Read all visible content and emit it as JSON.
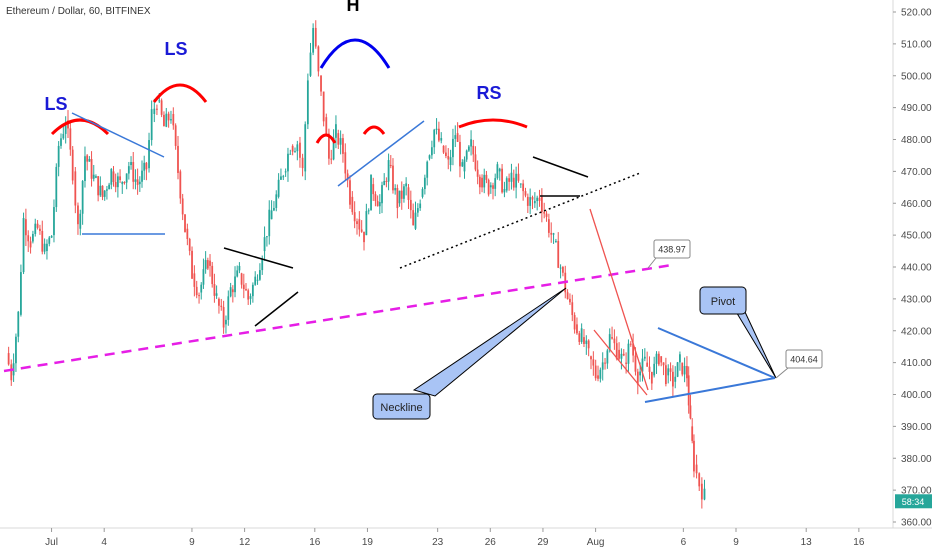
{
  "header": {
    "symbol_text": "Ethereum / Dollar, 60, BITFINEX"
  },
  "chart_data": {
    "type": "candlestick",
    "title": "Ethereum / Dollar, 60, BITFINEX",
    "ylim": [
      357,
      523
    ],
    "y_ticks": [
      520,
      510,
      500,
      490,
      480,
      470,
      460,
      450,
      440,
      430,
      420,
      410,
      400,
      390,
      380,
      370,
      360
    ],
    "y_tick_labels": [
      "520.00",
      "510.00",
      "500.00",
      "490.00",
      "480.00",
      "470.00",
      "460.00",
      "450.00",
      "440.00",
      "430.00",
      "420.00",
      "410.00",
      "400.00",
      "390.00",
      "380.00",
      "370.00",
      "360.00"
    ],
    "x_ticks": [
      {
        "label": "Jul",
        "day": 1
      },
      {
        "label": "4",
        "day": 4
      },
      {
        "label": "9",
        "day": 9
      },
      {
        "label": "12",
        "day": 12
      },
      {
        "label": "16",
        "day": 16
      },
      {
        "label": "19",
        "day": 19
      },
      {
        "label": "23",
        "day": 23
      },
      {
        "label": "26",
        "day": 26
      },
      {
        "label": "29",
        "day": 29
      },
      {
        "label": "Aug",
        "day": 32
      },
      {
        "label": "6",
        "day": 37
      },
      {
        "label": "9",
        "day": 40
      },
      {
        "label": "13",
        "day": 44
      },
      {
        "label": "16",
        "day": 47
      }
    ],
    "price_path": [
      {
        "day": 0.0,
        "price": 413
      },
      {
        "day": 0.3,
        "price": 406
      },
      {
        "day": 0.7,
        "price": 425
      },
      {
        "day": 1.0,
        "price": 455
      },
      {
        "day": 1.4,
        "price": 448
      },
      {
        "day": 1.8,
        "price": 452
      },
      {
        "day": 2.2,
        "price": 445
      },
      {
        "day": 2.6,
        "price": 450
      },
      {
        "day": 3.0,
        "price": 478
      },
      {
        "day": 3.4,
        "price": 486
      },
      {
        "day": 3.8,
        "price": 470
      },
      {
        "day": 4.1,
        "price": 452
      },
      {
        "day": 4.5,
        "price": 475
      },
      {
        "day": 5.0,
        "price": 468
      },
      {
        "day": 5.5,
        "price": 462
      },
      {
        "day": 6.0,
        "price": 470
      },
      {
        "day": 6.5,
        "price": 466
      },
      {
        "day": 7.0,
        "price": 472
      },
      {
        "day": 7.5,
        "price": 466
      },
      {
        "day": 8.0,
        "price": 471
      },
      {
        "day": 8.3,
        "price": 488
      },
      {
        "day": 8.6,
        "price": 492
      },
      {
        "day": 9.0,
        "price": 484
      },
      {
        "day": 9.4,
        "price": 488
      },
      {
        "day": 9.8,
        "price": 470
      },
      {
        "day": 10.2,
        "price": 452
      },
      {
        "day": 10.6,
        "price": 438
      },
      {
        "day": 11.0,
        "price": 432
      },
      {
        "day": 11.5,
        "price": 442
      },
      {
        "day": 12.0,
        "price": 430
      },
      {
        "day": 12.4,
        "price": 422
      },
      {
        "day": 12.8,
        "price": 433
      },
      {
        "day": 13.3,
        "price": 438
      },
      {
        "day": 13.8,
        "price": 430
      },
      {
        "day": 14.2,
        "price": 436
      },
      {
        "day": 14.6,
        "price": 445
      },
      {
        "day": 15.0,
        "price": 455
      },
      {
        "day": 15.4,
        "price": 462
      },
      {
        "day": 15.8,
        "price": 470
      },
      {
        "day": 16.2,
        "price": 478
      },
      {
        "day": 16.6,
        "price": 479
      },
      {
        "day": 16.9,
        "price": 470
      },
      {
        "day": 17.2,
        "price": 500
      },
      {
        "day": 17.5,
        "price": 515
      },
      {
        "day": 17.8,
        "price": 500
      },
      {
        "day": 18.1,
        "price": 487
      },
      {
        "day": 18.4,
        "price": 474
      },
      {
        "day": 18.8,
        "price": 482
      },
      {
        "day": 19.2,
        "price": 476
      },
      {
        "day": 19.6,
        "price": 462
      },
      {
        "day": 20.0,
        "price": 455
      },
      {
        "day": 20.4,
        "price": 450
      },
      {
        "day": 20.8,
        "price": 466
      },
      {
        "day": 21.3,
        "price": 460
      },
      {
        "day": 21.8,
        "price": 472
      },
      {
        "day": 22.3,
        "price": 460
      },
      {
        "day": 22.8,
        "price": 465
      },
      {
        "day": 23.2,
        "price": 452
      },
      {
        "day": 23.6,
        "price": 462
      },
      {
        "day": 24.0,
        "price": 474
      },
      {
        "day": 24.4,
        "price": 483
      },
      {
        "day": 24.8,
        "price": 478
      },
      {
        "day": 25.2,
        "price": 472
      },
      {
        "day": 25.6,
        "price": 482
      },
      {
        "day": 26.0,
        "price": 470
      },
      {
        "day": 26.5,
        "price": 478
      },
      {
        "day": 27.0,
        "price": 468
      },
      {
        "day": 27.5,
        "price": 465
      },
      {
        "day": 28.0,
        "price": 470
      },
      {
        "day": 28.4,
        "price": 464
      },
      {
        "day": 28.8,
        "price": 468
      },
      {
        "day": 29.2,
        "price": 466
      },
      {
        "day": 29.6,
        "price": 462
      },
      {
        "day": 30.0,
        "price": 460
      },
      {
        "day": 30.4,
        "price": 462
      },
      {
        "day": 30.8,
        "price": 455
      },
      {
        "day": 31.2,
        "price": 448
      },
      {
        "day": 31.6,
        "price": 440
      },
      {
        "day": 32.0,
        "price": 430
      },
      {
        "day": 32.4,
        "price": 422
      },
      {
        "day": 32.8,
        "price": 418
      },
      {
        "day": 33.2,
        "price": 412
      },
      {
        "day": 33.6,
        "price": 406
      },
      {
        "day": 34.0,
        "price": 410
      },
      {
        "day": 34.4,
        "price": 418
      },
      {
        "day": 34.8,
        "price": 414
      },
      {
        "day": 35.2,
        "price": 410
      },
      {
        "day": 35.6,
        "price": 416
      },
      {
        "day": 36.0,
        "price": 406
      },
      {
        "day": 36.4,
        "price": 410
      },
      {
        "day": 36.8,
        "price": 406
      },
      {
        "day": 37.2,
        "price": 412
      },
      {
        "day": 37.6,
        "price": 406
      },
      {
        "day": 38.0,
        "price": 404
      },
      {
        "day": 38.4,
        "price": 410
      },
      {
        "day": 38.8,
        "price": 406
      },
      {
        "day": 39.0,
        "price": 390
      },
      {
        "day": 39.2,
        "price": 378
      },
      {
        "day": 39.5,
        "price": 372
      },
      {
        "day": 39.8,
        "price": 368
      }
    ],
    "last_price_label": "58:34",
    "annotations": {
      "labels": [
        {
          "text": "LS",
          "day": 3.0,
          "price": 488
        },
        {
          "text": "LS",
          "day": 8.8,
          "price": 506
        },
        {
          "text": "H",
          "day": 18.0,
          "price": 522
        },
        {
          "text": "RS",
          "day": 25.0,
          "price": 491
        }
      ],
      "neckline_text": "Neckline",
      "pivot_text": "Pivot",
      "price_tag_1": "438.97",
      "price_tag_2": "404.64"
    }
  },
  "colors": {
    "up": "#26a69a",
    "down": "#ef5350",
    "arc_red": "#ff0000",
    "arc_blue": "#0000ee",
    "trend_blue": "#3a78d8",
    "neckline_magenta": "#e61ee6",
    "callout_fill": "#a9c4f5",
    "label_blue": "#1a1ad6",
    "last_price_green": "#26a69a"
  }
}
